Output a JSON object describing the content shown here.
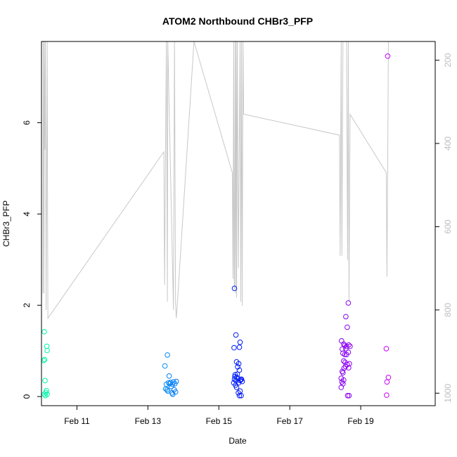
{
  "chart_data": {
    "type": "scatter",
    "title": "ATOM2 Northbound CHBr3_PFP",
    "xlabel": "Date",
    "ylabel": "CHBr3_PFP",
    "x_ticks": [
      "Feb 11",
      "Feb 13",
      "Feb 15",
      "Feb 17",
      "Feb 19"
    ],
    "y_ticks": [
      "0",
      "2",
      "4",
      "6"
    ],
    "y2_ticks": [
      "200",
      "400",
      "600",
      "800",
      "1000"
    ],
    "xlim": [
      10.0,
      21.1
    ],
    "ylim": [
      -0.2,
      7.78
    ],
    "y2lim": [
      1030,
      155
    ],
    "colors": {
      "series": "#00ffbb to #cc00ff gradient",
      "overlay": "#bdbdbd"
    },
    "points": [
      [
        10.08,
        1.42
      ],
      [
        10.06,
        0.79
      ],
      [
        10.09,
        0.81
      ],
      [
        10.1,
        0.35
      ],
      [
        10.08,
        0.05
      ],
      [
        10.11,
        0.02
      ],
      [
        10.12,
        0.09
      ],
      [
        10.14,
        0.13
      ],
      [
        10.16,
        0.05
      ],
      [
        10.15,
        1.1
      ],
      [
        10.16,
        1.01
      ],
      [
        13.48,
        0.67
      ],
      [
        13.55,
        0.91
      ],
      [
        13.5,
        0.17
      ],
      [
        13.52,
        0.27
      ],
      [
        13.54,
        0.15
      ],
      [
        13.56,
        0.12
      ],
      [
        13.58,
        0.3
      ],
      [
        13.6,
        0.45
      ],
      [
        13.62,
        0.28
      ],
      [
        13.64,
        0.31
      ],
      [
        13.66,
        0.22
      ],
      [
        13.68,
        0.08
      ],
      [
        13.7,
        0.05
      ],
      [
        13.72,
        0.32
      ],
      [
        13.74,
        0.15
      ],
      [
        13.76,
        0.28
      ],
      [
        13.78,
        0.1
      ],
      [
        13.8,
        0.33
      ],
      [
        13.69,
        0.27
      ],
      [
        15.44,
        2.37
      ],
      [
        15.48,
        1.35
      ],
      [
        15.43,
        1.07
      ],
      [
        15.6,
        1.19
      ],
      [
        15.58,
        1.08
      ],
      [
        15.5,
        0.76
      ],
      [
        15.56,
        0.72
      ],
      [
        15.42,
        0.3
      ],
      [
        15.44,
        0.38
      ],
      [
        15.45,
        0.44
      ],
      [
        15.46,
        0.48
      ],
      [
        15.48,
        0.35
      ],
      [
        15.5,
        0.42
      ],
      [
        15.52,
        0.49
      ],
      [
        15.54,
        0.4
      ],
      [
        15.56,
        0.3
      ],
      [
        15.58,
        0.58
      ],
      [
        15.6,
        0.35
      ],
      [
        15.62,
        0.37
      ],
      [
        15.64,
        0.38
      ],
      [
        15.66,
        0.33
      ],
      [
        15.5,
        0.2
      ],
      [
        15.55,
        0.08
      ],
      [
        15.58,
        0.02
      ],
      [
        15.6,
        0.12
      ],
      [
        15.63,
        0.02
      ],
      [
        15.47,
        0.25
      ],
      [
        15.53,
        0.65
      ],
      [
        18.65,
        2.05
      ],
      [
        18.58,
        1.75
      ],
      [
        18.62,
        1.52
      ],
      [
        18.46,
        1.22
      ],
      [
        18.52,
        1.15
      ],
      [
        18.55,
        1.12
      ],
      [
        18.6,
        1.1
      ],
      [
        18.66,
        1.13
      ],
      [
        18.7,
        1.1
      ],
      [
        18.5,
        0.95
      ],
      [
        18.55,
        0.92
      ],
      [
        18.6,
        0.92
      ],
      [
        18.65,
        0.97
      ],
      [
        18.52,
        0.78
      ],
      [
        18.56,
        0.75
      ],
      [
        18.62,
        0.7
      ],
      [
        18.68,
        0.72
      ],
      [
        18.48,
        0.55
      ],
      [
        18.5,
        0.52
      ],
      [
        18.53,
        0.62
      ],
      [
        18.57,
        0.66
      ],
      [
        18.66,
        0.63
      ],
      [
        18.45,
        0.4
      ],
      [
        18.47,
        0.32
      ],
      [
        18.5,
        0.28
      ],
      [
        18.45,
        0.2
      ],
      [
        18.52,
        0.36
      ],
      [
        18.63,
        0.02
      ],
      [
        18.67,
        0.02
      ],
      [
        18.48,
        1.04
      ],
      [
        18.58,
        1.05
      ],
      [
        19.76,
        7.46
      ],
      [
        19.72,
        1.05
      ],
      [
        19.78,
        0.42
      ],
      [
        19.74,
        0.32
      ],
      [
        19.73,
        0.03
      ]
    ],
    "overlay_x": [
      10.04,
      10.05,
      10.07,
      10.08,
      10.1,
      10.11,
      10.13,
      10.16,
      10.18,
      13.45,
      13.47,
      13.52,
      13.55,
      13.56,
      13.72,
      13.75,
      13.78,
      13.8,
      13.82,
      14.3,
      15.38,
      15.4,
      15.42,
      15.43,
      15.44,
      15.46,
      15.47,
      15.49,
      15.5,
      15.52,
      15.55,
      15.6,
      15.62,
      15.64,
      15.66,
      15.68,
      15.7,
      15.72,
      18.4,
      18.42,
      18.45,
      18.47,
      18.5,
      18.55,
      18.6,
      18.63,
      18.65,
      18.67,
      18.7,
      19.72,
      19.74,
      19.76,
      19.78
    ],
    "overlay_y2": [
      760,
      155,
      760,
      155,
      415,
      155,
      800,
      155,
      820,
      420,
      740,
      155,
      780,
      155,
      800,
      155,
      780,
      820,
      800,
      155,
      470,
      725,
      155,
      690,
      750,
      155,
      760,
      155,
      770,
      155,
      700,
      155,
      780,
      155,
      790,
      155,
      330,
      330,
      380,
      670,
      155,
      670,
      155,
      155,
      155,
      680,
      155,
      780,
      330,
      470,
      720,
      470,
      155
    ]
  }
}
